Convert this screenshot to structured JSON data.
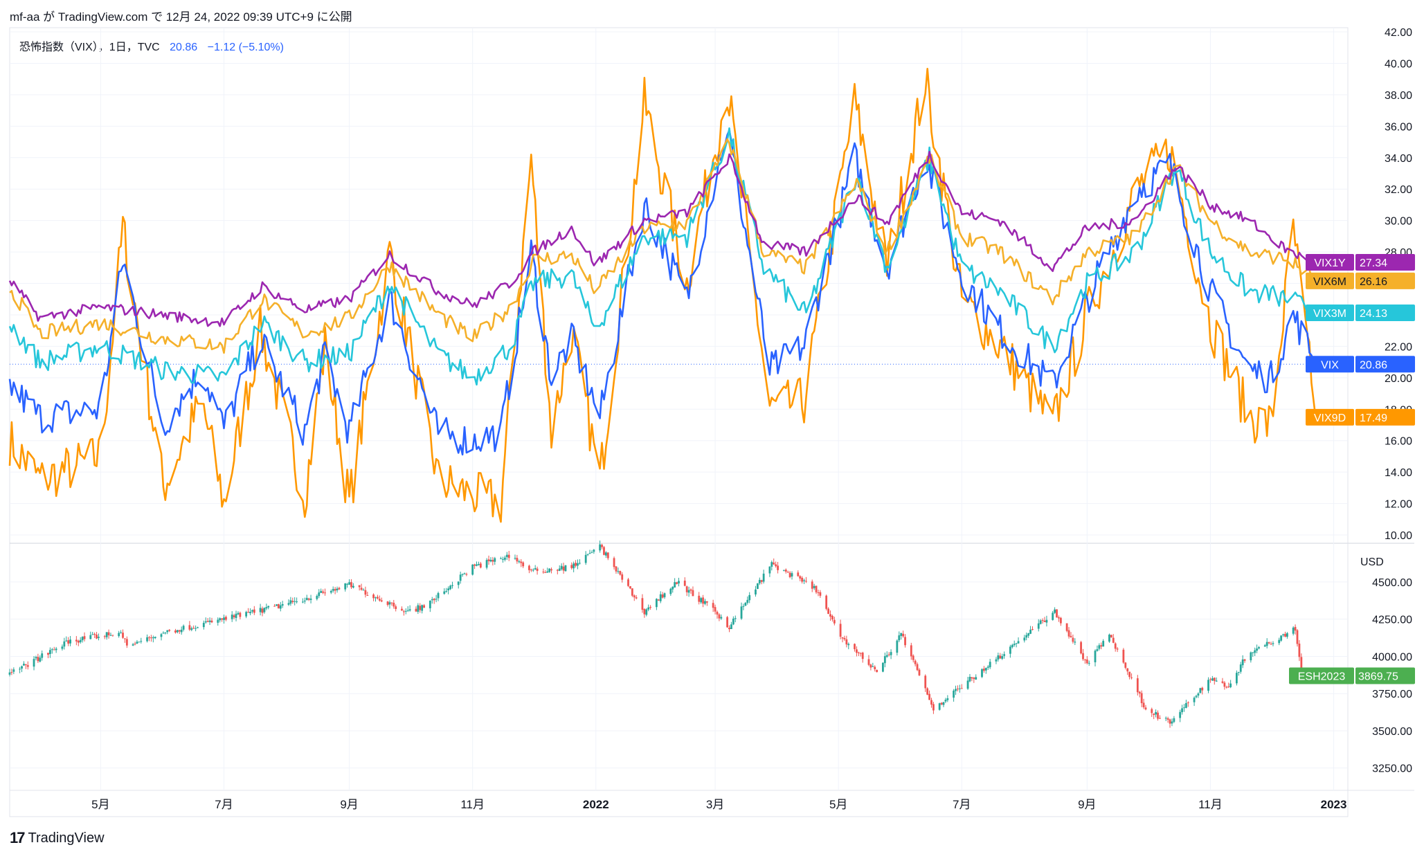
{
  "header": {
    "publish_line": "mf-aa が TradingView.com で 12月 24, 2022 09:39 UTC+9 に公開"
  },
  "legend": {
    "symbol": "恐怖指数（VIX），1日，TVC",
    "last": "20.86",
    "change": "−1.12 (−5.10%)"
  },
  "brand": {
    "name": "TradingView",
    "logo_icon": "tradingview-logo-icon"
  },
  "x_axis": {
    "labels": [
      {
        "text": "5月",
        "d": "2021-05-01"
      },
      {
        "text": "7月",
        "d": "2021-07-01"
      },
      {
        "text": "9月",
        "d": "2021-09-01"
      },
      {
        "text": "11月",
        "d": "2021-11-01"
      },
      {
        "text": "2022",
        "d": "2022-01-01",
        "bold": true
      },
      {
        "text": "3月",
        "d": "2022-03-01"
      },
      {
        "text": "5月",
        "d": "2022-05-01"
      },
      {
        "text": "7月",
        "d": "2022-07-01"
      },
      {
        "text": "9月",
        "d": "2022-09-01"
      },
      {
        "text": "11月",
        "d": "2022-11-01"
      },
      {
        "text": "2023",
        "d": "2023-01-01",
        "bold": true
      }
    ]
  },
  "chart_data": [
    {
      "type": "line",
      "y_ticks": [
        "10.00",
        "12.00",
        "14.00",
        "16.00",
        "18.00",
        "20.00",
        "22.00",
        "24.00",
        "26.00",
        "28.00",
        "30.00",
        "32.00",
        "34.00",
        "36.00",
        "38.00",
        "40.00",
        "42.00"
      ],
      "ylim": [
        10,
        42
      ],
      "x_range": [
        "2021-03-17",
        "2023-01-08"
      ],
      "grid": true,
      "series": [
        {
          "name": "VIX1Y",
          "color": "#9c27b0",
          "last": "27.34",
          "points": [
            [
              "2021-03-17",
              26.2
            ],
            [
              "2021-04-01",
              23.8
            ],
            [
              "2021-05-01",
              24.5
            ],
            [
              "2021-06-01",
              24.0
            ],
            [
              "2021-07-01",
              23.5
            ],
            [
              "2021-07-20",
              25.8
            ],
            [
              "2021-08-10",
              24.3
            ],
            [
              "2021-09-01",
              25.0
            ],
            [
              "2021-09-21",
              27.8
            ],
            [
              "2021-10-15",
              25.5
            ],
            [
              "2021-11-01",
              24.6
            ],
            [
              "2021-11-20",
              26.0
            ],
            [
              "2021-12-01",
              28.0
            ],
            [
              "2021-12-20",
              29.5
            ],
            [
              "2022-01-01",
              27.2
            ],
            [
              "2022-01-25",
              30.0
            ],
            [
              "2022-02-15",
              30.5
            ],
            [
              "2022-03-08",
              34.0
            ],
            [
              "2022-03-25",
              28.5
            ],
            [
              "2022-04-15",
              28.0
            ],
            [
              "2022-05-10",
              31.5
            ],
            [
              "2022-05-25",
              29.8
            ],
            [
              "2022-06-15",
              34.2
            ],
            [
              "2022-07-01",
              30.5
            ],
            [
              "2022-07-20",
              30.0
            ],
            [
              "2022-08-15",
              27.0
            ],
            [
              "2022-09-01",
              29.5
            ],
            [
              "2022-09-25",
              30.0
            ],
            [
              "2022-10-15",
              33.5
            ],
            [
              "2022-11-01",
              31.0
            ],
            [
              "2022-11-20",
              30.0
            ],
            [
              "2022-12-10",
              28.0
            ],
            [
              "2022-12-23",
              27.34
            ]
          ]
        },
        {
          "name": "VIX6M",
          "color": "#f5b02a",
          "last": "26.16",
          "points": [
            [
              "2021-03-17",
              25.8
            ],
            [
              "2021-04-01",
              22.8
            ],
            [
              "2021-05-01",
              23.5
            ],
            [
              "2021-06-01",
              22.5
            ],
            [
              "2021-07-01",
              22.0
            ],
            [
              "2021-07-20",
              25.0
            ],
            [
              "2021-08-10",
              22.8
            ],
            [
              "2021-09-01",
              23.8
            ],
            [
              "2021-09-21",
              27.2
            ],
            [
              "2021-10-15",
              24.0
            ],
            [
              "2021-11-01",
              22.5
            ],
            [
              "2021-11-20",
              24.5
            ],
            [
              "2021-12-01",
              27.5
            ],
            [
              "2021-12-20",
              27.8
            ],
            [
              "2022-01-01",
              25.5
            ],
            [
              "2022-01-25",
              29.5
            ],
            [
              "2022-02-15",
              29.8
            ],
            [
              "2022-03-08",
              35.0
            ],
            [
              "2022-03-25",
              28.0
            ],
            [
              "2022-04-15",
              27.0
            ],
            [
              "2022-05-10",
              32.5
            ],
            [
              "2022-05-25",
              28.0
            ],
            [
              "2022-06-15",
              34.0
            ],
            [
              "2022-07-01",
              29.0
            ],
            [
              "2022-07-20",
              28.0
            ],
            [
              "2022-08-15",
              25.0
            ],
            [
              "2022-09-01",
              28.0
            ],
            [
              "2022-09-25",
              29.0
            ],
            [
              "2022-10-15",
              33.5
            ],
            [
              "2022-11-01",
              30.0
            ],
            [
              "2022-11-20",
              28.0
            ],
            [
              "2022-12-10",
              27.5
            ],
            [
              "2022-12-23",
              26.16
            ]
          ]
        },
        {
          "name": "VIX3M",
          "color": "#26c6da",
          "last": "24.13",
          "points": [
            [
              "2021-03-17",
              23.5
            ],
            [
              "2021-04-01",
              21.0
            ],
            [
              "2021-05-01",
              22.0
            ],
            [
              "2021-06-01",
              20.5
            ],
            [
              "2021-07-01",
              20.0
            ],
            [
              "2021-07-20",
              23.5
            ],
            [
              "2021-08-10",
              21.0
            ],
            [
              "2021-09-01",
              21.5
            ],
            [
              "2021-09-21",
              26.0
            ],
            [
              "2021-10-15",
              21.5
            ],
            [
              "2021-11-01",
              20.0
            ],
            [
              "2021-11-20",
              22.0
            ],
            [
              "2021-12-01",
              26.0
            ],
            [
              "2021-12-20",
              26.5
            ],
            [
              "2022-01-01",
              23.0
            ],
            [
              "2022-01-25",
              29.0
            ],
            [
              "2022-02-15",
              29.0
            ],
            [
              "2022-03-08",
              35.5
            ],
            [
              "2022-03-25",
              27.0
            ],
            [
              "2022-04-15",
              24.0
            ],
            [
              "2022-05-10",
              33.0
            ],
            [
              "2022-05-25",
              27.0
            ],
            [
              "2022-06-15",
              34.0
            ],
            [
              "2022-07-01",
              27.0
            ],
            [
              "2022-07-20",
              25.5
            ],
            [
              "2022-08-15",
              22.0
            ],
            [
              "2022-09-01",
              26.0
            ],
            [
              "2022-09-25",
              28.0
            ],
            [
              "2022-10-15",
              33.5
            ],
            [
              "2022-11-01",
              28.0
            ],
            [
              "2022-11-20",
              25.5
            ],
            [
              "2022-12-10",
              25.0
            ],
            [
              "2022-12-23",
              24.13
            ]
          ]
        },
        {
          "name": "VIX",
          "color": "#2962ff",
          "last": "20.86",
          "points": [
            [
              "2021-03-17",
              19.5
            ],
            [
              "2021-04-01",
              17.5
            ],
            [
              "2021-05-01",
              18.0
            ],
            [
              "2021-05-12",
              27.5
            ],
            [
              "2021-06-01",
              17.0
            ],
            [
              "2021-06-20",
              20.5
            ],
            [
              "2021-07-01",
              16.8
            ],
            [
              "2021-07-19",
              22.5
            ],
            [
              "2021-08-10",
              16.5
            ],
            [
              "2021-08-20",
              21.5
            ],
            [
              "2021-09-01",
              16.5
            ],
            [
              "2021-09-21",
              25.0
            ],
            [
              "2021-10-15",
              16.5
            ],
            [
              "2021-11-01",
              16.0
            ],
            [
              "2021-11-15",
              16.5
            ],
            [
              "2021-11-30",
              28.0
            ],
            [
              "2021-12-10",
              20.0
            ],
            [
              "2021-12-20",
              22.5
            ],
            [
              "2022-01-03",
              17.5
            ],
            [
              "2022-01-25",
              31.0
            ],
            [
              "2022-02-15",
              25.0
            ],
            [
              "2022-03-07",
              36.0
            ],
            [
              "2022-03-28",
              20.5
            ],
            [
              "2022-04-14",
              22.0
            ],
            [
              "2022-05-09",
              34.0
            ],
            [
              "2022-05-25",
              27.0
            ],
            [
              "2022-06-13",
              34.0
            ],
            [
              "2022-07-01",
              26.5
            ],
            [
              "2022-07-20",
              23.0
            ],
            [
              "2022-08-15",
              19.5
            ],
            [
              "2022-09-01",
              25.0
            ],
            [
              "2022-09-26",
              32.0
            ],
            [
              "2022-10-12",
              33.5
            ],
            [
              "2022-11-01",
              25.5
            ],
            [
              "2022-11-20",
              20.5
            ],
            [
              "2022-12-01",
              20.0
            ],
            [
              "2022-12-12",
              24.0
            ],
            [
              "2022-12-23",
              20.86
            ]
          ]
        },
        {
          "name": "VIX9D",
          "color": "#ff9800",
          "last": "17.49",
          "points": [
            [
              "2021-03-17",
              16.0
            ],
            [
              "2021-04-01",
              13.5
            ],
            [
              "2021-05-01",
              15.0
            ],
            [
              "2021-05-12",
              29.5
            ],
            [
              "2021-06-01",
              13.0
            ],
            [
              "2021-06-20",
              18.5
            ],
            [
              "2021-07-01",
              12.0
            ],
            [
              "2021-07-19",
              23.0
            ],
            [
              "2021-08-10",
              12.5
            ],
            [
              "2021-08-20",
              22.0
            ],
            [
              "2021-09-01",
              12.0
            ],
            [
              "2021-09-21",
              28.0
            ],
            [
              "2021-10-15",
              13.5
            ],
            [
              "2021-11-01",
              12.5
            ],
            [
              "2021-11-15",
              12.0
            ],
            [
              "2021-11-30",
              34.0
            ],
            [
              "2021-12-10",
              16.5
            ],
            [
              "2021-12-20",
              23.0
            ],
            [
              "2022-01-03",
              13.5
            ],
            [
              "2022-01-25",
              37.5
            ],
            [
              "2022-02-15",
              26.0
            ],
            [
              "2022-03-07",
              38.5
            ],
            [
              "2022-03-28",
              18.0
            ],
            [
              "2022-04-14",
              18.5
            ],
            [
              "2022-05-09",
              37.5
            ],
            [
              "2022-05-25",
              27.0
            ],
            [
              "2022-06-13",
              39.0
            ],
            [
              "2022-07-01",
              25.0
            ],
            [
              "2022-07-20",
              22.0
            ],
            [
              "2022-08-15",
              17.0
            ],
            [
              "2022-09-01",
              24.0
            ],
            [
              "2022-09-26",
              32.0
            ],
            [
              "2022-10-12",
              34.5
            ],
            [
              "2022-11-01",
              23.5
            ],
            [
              "2022-11-20",
              17.5
            ],
            [
              "2022-12-01",
              17.0
            ],
            [
              "2022-12-12",
              29.5
            ],
            [
              "2022-12-23",
              17.49
            ]
          ]
        }
      ]
    },
    {
      "type": "candlestick",
      "series_name": "ESH2023",
      "unit": "USD",
      "last": "3869.75",
      "label_color": "#4caf50",
      "up_color": "#26a69a",
      "down_color": "#ef5350",
      "y_ticks": [
        "3250.00",
        "3500.00",
        "3750.00",
        "4000.00",
        "4250.00",
        "4500.00"
      ],
      "ylim": [
        3100,
        4760
      ],
      "x_range": [
        "2021-03-17",
        "2023-01-08"
      ],
      "grid": true,
      "path": [
        [
          "2021-03-17",
          3880
        ],
        [
          "2021-04-15",
          4100
        ],
        [
          "2021-05-10",
          4160
        ],
        [
          "2021-05-15",
          4070
        ],
        [
          "2021-06-01",
          4160
        ],
        [
          "2021-07-01",
          4250
        ],
        [
          "2021-08-01",
          4350
        ],
        [
          "2021-09-01",
          4480
        ],
        [
          "2021-09-30",
          4300
        ],
        [
          "2021-10-10",
          4350
        ],
        [
          "2021-11-01",
          4600
        ],
        [
          "2021-11-20",
          4680
        ],
        [
          "2021-11-30",
          4570
        ],
        [
          "2021-12-20",
          4600
        ],
        [
          "2022-01-03",
          4740
        ],
        [
          "2022-01-25",
          4300
        ],
        [
          "2022-02-10",
          4500
        ],
        [
          "2022-03-01",
          4300
        ],
        [
          "2022-03-08",
          4200
        ],
        [
          "2022-03-29",
          4620
        ],
        [
          "2022-04-20",
          4450
        ],
        [
          "2022-05-01",
          4150
        ],
        [
          "2022-05-20",
          3900
        ],
        [
          "2022-06-01",
          4150
        ],
        [
          "2022-06-17",
          3650
        ],
        [
          "2022-07-01",
          3800
        ],
        [
          "2022-08-16",
          4300
        ],
        [
          "2022-09-01",
          3950
        ],
        [
          "2022-09-12",
          4150
        ],
        [
          "2022-09-30",
          3650
        ],
        [
          "2022-10-12",
          3550
        ],
        [
          "2022-11-01",
          3850
        ],
        [
          "2022-11-10",
          3800
        ],
        [
          "2022-11-20",
          4030
        ],
        [
          "2022-12-01",
          4100
        ],
        [
          "2022-12-13",
          4190
        ],
        [
          "2022-12-16",
          3900
        ],
        [
          "2022-12-23",
          3869.75
        ]
      ]
    }
  ]
}
